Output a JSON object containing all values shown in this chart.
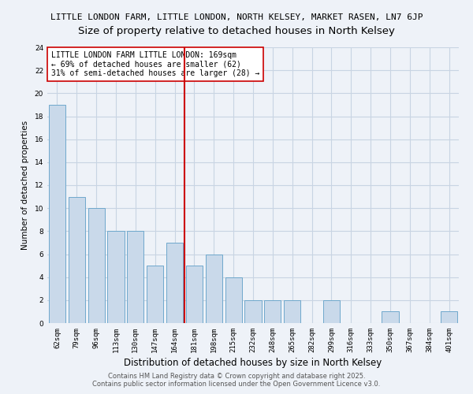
{
  "title1": "LITTLE LONDON FARM, LITTLE LONDON, NORTH KELSEY, MARKET RASEN, LN7 6JP",
  "title2": "Size of property relative to detached houses in North Kelsey",
  "xlabel": "Distribution of detached houses by size in North Kelsey",
  "ylabel": "Number of detached properties",
  "categories": [
    "62sqm",
    "79sqm",
    "96sqm",
    "113sqm",
    "130sqm",
    "147sqm",
    "164sqm",
    "181sqm",
    "198sqm",
    "215sqm",
    "232sqm",
    "248sqm",
    "265sqm",
    "282sqm",
    "299sqm",
    "316sqm",
    "333sqm",
    "350sqm",
    "367sqm",
    "384sqm",
    "401sqm"
  ],
  "values": [
    19,
    11,
    10,
    8,
    8,
    5,
    7,
    5,
    6,
    4,
    2,
    2,
    2,
    0,
    2,
    0,
    0,
    1,
    0,
    0,
    1
  ],
  "bar_color": "#c9d9ea",
  "bar_edge_color": "#6fa8cc",
  "vline_index": 6,
  "vline_color": "#cc0000",
  "annotation_text": "LITTLE LONDON FARM LITTLE LONDON: 169sqm\n← 69% of detached houses are smaller (62)\n31% of semi-detached houses are larger (28) →",
  "annotation_box_color": "#ffffff",
  "annotation_box_edge_color": "#cc0000",
  "ylim": [
    0,
    24
  ],
  "yticks": [
    0,
    2,
    4,
    6,
    8,
    10,
    12,
    14,
    16,
    18,
    20,
    22,
    24
  ],
  "grid_color": "#c8d4e3",
  "background_color": "#eef2f8",
  "footer_text": "Contains HM Land Registry data © Crown copyright and database right 2025.\nContains public sector information licensed under the Open Government Licence v3.0.",
  "title1_fontsize": 8.0,
  "title2_fontsize": 9.5,
  "xlabel_fontsize": 8.5,
  "ylabel_fontsize": 7.5,
  "tick_fontsize": 6.5,
  "annotation_fontsize": 7.0,
  "footer_fontsize": 6.0
}
